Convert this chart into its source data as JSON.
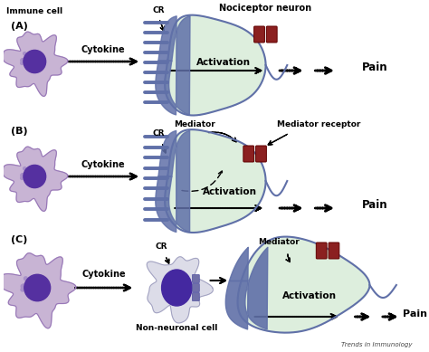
{
  "bg_color": "#ffffff",
  "label_A": "(A)",
  "label_B": "(B)",
  "label_C": "(C)",
  "immune_cell_label": "Immune cell",
  "cytokine_label": "Cytokine",
  "activation_label": "Activation",
  "pain_label": "Pain",
  "nociceptor_label": "Nociceptor neuron",
  "mediator_label": "Mediator",
  "mediator_receptor_label": "Mediator receptor",
  "non_neuronal_label": "Non-neuronal cell",
  "cr_label": "CR",
  "trends_label": "Trends in Immunology",
  "cell_outer_color": "#c8b4d4",
  "cell_inner_color": "#5530a0",
  "neuron_body_color": "#ddeedd",
  "neuron_border_color": "#6070a8",
  "receptor_color": "#8b2020",
  "dendrite_color": "#6070a8",
  "non_neuronal_outer": "#d8d8e8",
  "non_neuronal_inner": "#4428a0",
  "arrow_color": "#000000",
  "text_color": "#000000"
}
